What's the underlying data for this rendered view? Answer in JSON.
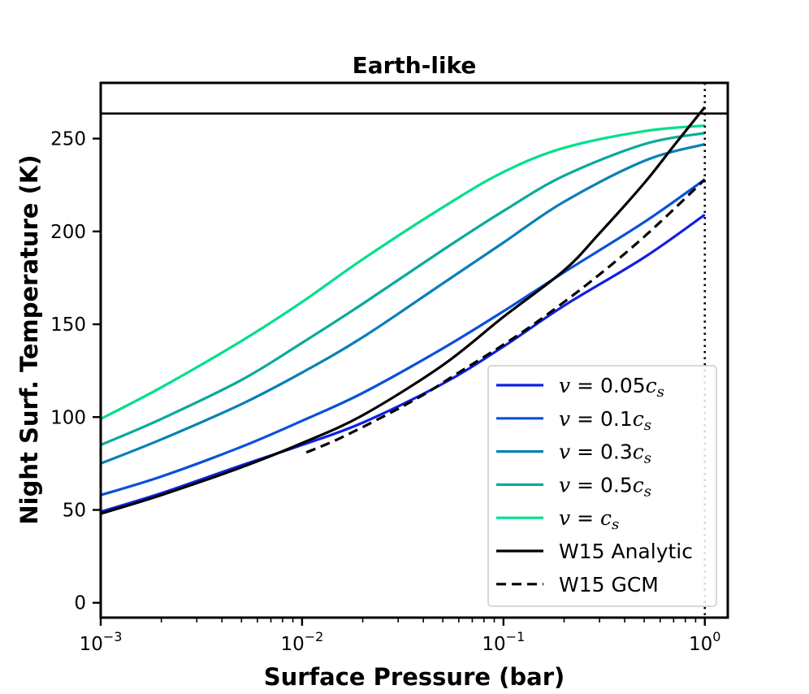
{
  "chart_data": {
    "type": "line",
    "title": "Earth-like",
    "xlabel": "Surface Pressure (bar)",
    "ylabel": "Night Surf. Temperature (K)",
    "xscale": "log",
    "xlim": [
      0.001,
      1.3
    ],
    "ylim": [
      -8,
      280
    ],
    "xticks": [
      {
        "value": 0.001,
        "base": "10",
        "exp": "−3"
      },
      {
        "value": 0.01,
        "base": "10",
        "exp": "−2"
      },
      {
        "value": 0.1,
        "base": "10",
        "exp": "−1"
      },
      {
        "value": 1,
        "base": "10",
        "exp": "0"
      }
    ],
    "yticks": [
      0,
      50,
      100,
      150,
      200,
      250
    ],
    "hline": {
      "y": 263.5,
      "color": "#000000",
      "style": "solid"
    },
    "vline": {
      "x": 1.0,
      "color": "#000000",
      "style": "dotted"
    },
    "legend_position": "lower-right",
    "series": [
      {
        "name": "v = 0.05c_s",
        "legend": {
          "lhs": "v",
          "eq": " = 0.05",
          "c": "c",
          "sub": "s"
        },
        "color": "#1020e0",
        "style": "solid",
        "x": [
          0.001,
          0.002,
          0.005,
          0.01,
          0.02,
          0.05,
          0.1,
          0.2,
          0.5,
          1.0
        ],
        "y": [
          49,
          59,
          74,
          85,
          97,
          118,
          138,
          160,
          186,
          209
        ]
      },
      {
        "name": "v = 0.1c_s",
        "legend": {
          "lhs": "v",
          "eq": " = 0.1",
          "c": "c",
          "sub": "s"
        },
        "color": "#0a50d8",
        "style": "solid",
        "x": [
          0.001,
          0.002,
          0.005,
          0.01,
          0.02,
          0.05,
          0.1,
          0.2,
          0.5,
          1.0
        ],
        "y": [
          58,
          68,
          84,
          98,
          113,
          137,
          157,
          178,
          205,
          228
        ]
      },
      {
        "name": "v = 0.3c_s",
        "legend": {
          "lhs": "v",
          "eq": " = 0.3",
          "c": "c",
          "sub": "s"
        },
        "color": "#0a80b8",
        "style": "solid",
        "x": [
          0.001,
          0.002,
          0.005,
          0.01,
          0.02,
          0.05,
          0.1,
          0.2,
          0.5,
          1.0
        ],
        "y": [
          75,
          88,
          107,
          124,
          143,
          172,
          194,
          216,
          238,
          247
        ]
      },
      {
        "name": "v = 0.5c_s",
        "legend": {
          "lhs": "v",
          "eq": " = 0.5",
          "c": "c",
          "sub": "s"
        },
        "color": "#0aaa9a",
        "style": "solid",
        "x": [
          0.001,
          0.002,
          0.005,
          0.01,
          0.02,
          0.05,
          0.1,
          0.2,
          0.5,
          1.0
        ],
        "y": [
          85,
          99,
          120,
          140,
          161,
          190,
          211,
          230,
          247,
          253
        ]
      },
      {
        "name": "v = c_s",
        "legend": {
          "lhs": "v",
          "eq": " = ",
          "c": "c",
          "sub": "s"
        },
        "color": "#00e08a",
        "style": "solid",
        "x": [
          0.001,
          0.002,
          0.005,
          0.01,
          0.02,
          0.05,
          0.1,
          0.2,
          0.5,
          1.0
        ],
        "y": [
          99,
          116,
          141,
          162,
          185,
          213,
          232,
          245,
          254,
          257
        ]
      },
      {
        "name": "W15 Analytic",
        "legend": {
          "text": "W15 Analytic"
        },
        "color": "#000000",
        "style": "solid",
        "x": [
          0.001,
          0.002,
          0.005,
          0.01,
          0.02,
          0.05,
          0.1,
          0.2,
          0.3,
          0.5,
          0.7,
          1.0
        ],
        "y": [
          48,
          58,
          73,
          86,
          101,
          128,
          154,
          179,
          199,
          226,
          246,
          267
        ]
      },
      {
        "name": "W15 GCM",
        "legend": {
          "text": "W15 GCM"
        },
        "color": "#000000",
        "style": "dashed",
        "x": [
          0.0105,
          0.015,
          0.025,
          0.04,
          0.06,
          0.1,
          0.15,
          0.25,
          0.4,
          0.6,
          1.0
        ],
        "y": [
          81,
          88,
          100,
          112,
          124,
          139,
          152,
          170,
          188,
          205,
          228
        ]
      }
    ]
  }
}
